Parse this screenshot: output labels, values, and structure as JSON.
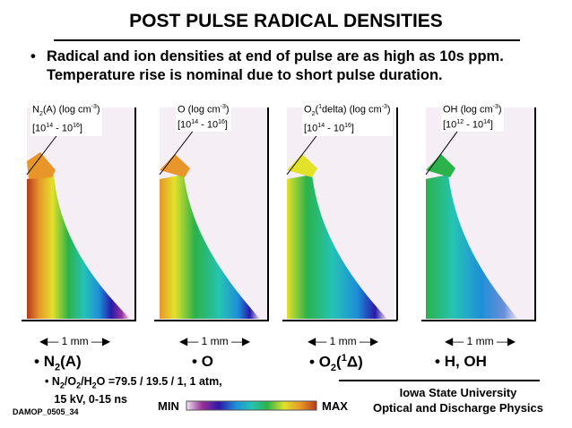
{
  "header": {
    "title": "POST PULSE RADICAL DENSITIES",
    "bullet_1": "Radical and ion densities at end of pulse are as high as 10s ppm.",
    "bullet_2": "Temperature rise is nominal due to short pulse duration."
  },
  "panels": [
    {
      "species_pre": "N",
      "species_sub": "2",
      "species_post": "(A)",
      "unit": "(log cm",
      "exp": "-3",
      "range_pre": "[10",
      "range_lo": "14",
      "range_mid": " - 10",
      "range_hi": "16",
      "scale": "1 mm"
    },
    {
      "species_pre": "O",
      "unit": "(log cm",
      "exp": "-3",
      "range_pre": "[10",
      "range_lo": "14",
      "range_mid": " - 10",
      "range_hi": "16",
      "scale": "1 mm"
    },
    {
      "species_pre": "O",
      "species_sub": "2",
      "paren_open": "(",
      "delta_exp": "1",
      "delta_text": "delta) (log cm",
      "exp": "-3",
      "range_pre": "[10",
      "range_lo": "14",
      "range_mid": " - 10",
      "range_hi": "16",
      "scale": "1 mm"
    },
    {
      "species_pre": "OH",
      "unit": "(log cm",
      "exp": "-3",
      "range_pre": "[10",
      "range_lo": "12",
      "range_mid": " - 10",
      "range_hi": "14",
      "scale": "1 mm"
    }
  ],
  "species_labels": [
    {
      "pre": "N",
      "sub": "2",
      "post": "(A)"
    },
    {
      "pre": "O"
    },
    {
      "pre": "O",
      "sub": "2",
      "mid": "(",
      "sup": "1",
      "delta": "Δ",
      "post": ")"
    },
    {
      "pre": "H, OH"
    }
  ],
  "note": {
    "pre": "N",
    "s1": "2",
    "sl1": "/O",
    "s2": "2",
    "sl2": "/H",
    "s3": "2",
    "post": "O =79.5 / 19.5 / 1, 1 atm,",
    "line2": "15 kV, 0-15 ns"
  },
  "code": "DAMOP_0505_34",
  "colorbar": {
    "min_label": "MIN",
    "max_label": "MAX"
  },
  "affiliation": {
    "line1": "Iowa State University",
    "line2": "Optical and Discharge Physics"
  },
  "colors": {
    "gradient": [
      "#f2e6f2",
      "#9a2f9a",
      "#2a1aa8",
      "#1e8fd8",
      "#25c3b5",
      "#2bb24a",
      "#e2e22a",
      "#e8962a",
      "#b53a1a"
    ]
  }
}
